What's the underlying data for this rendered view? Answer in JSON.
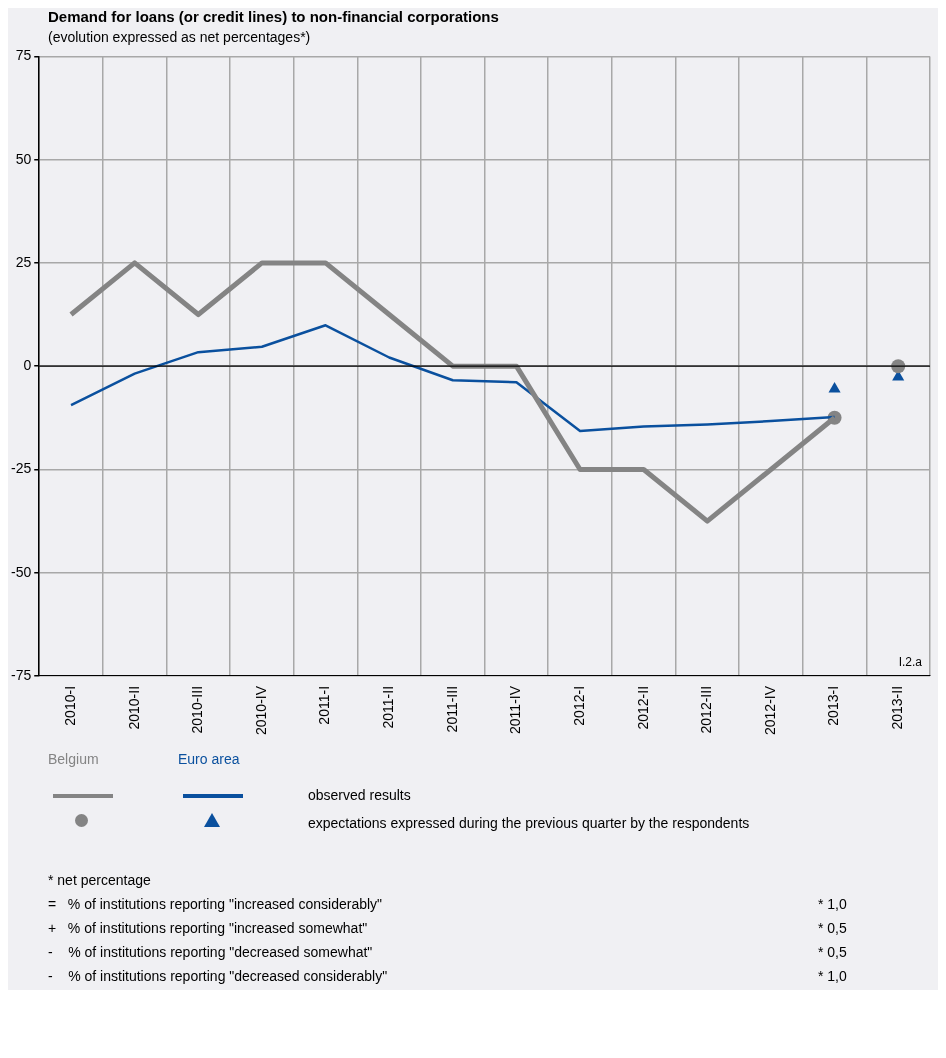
{
  "chart_data": {
    "type": "line",
    "title": "Demand for loans (or credit lines) to non-financial corporations",
    "subtitle": "(evolution expressed as net percentages*)",
    "categories": [
      "2010-I",
      "2010-II",
      "2010-III",
      "2010-IV",
      "2011-I",
      "2011-II",
      "2011-III",
      "2011-IV",
      "2012-I",
      "2012-II",
      "2012-III",
      "2012-IV",
      "2013-I",
      "2013-II"
    ],
    "series": [
      {
        "name": "Belgium",
        "type": "line",
        "color": "#848484",
        "values": [
          12.5,
          25,
          12.5,
          25,
          25,
          12.5,
          0,
          0,
          -25,
          -25,
          -37.5,
          -25,
          -12.5,
          null
        ]
      },
      {
        "name": "Euro area",
        "type": "line",
        "color": "#0a509e",
        "values": [
          -9.4,
          -1.8,
          3.4,
          4.7,
          9.9,
          2.1,
          -3.4,
          -3.9,
          -15.7,
          -14.6,
          -14.1,
          -13.3,
          -12.3,
          null
        ]
      },
      {
        "type": "scatter",
        "marker": "circle",
        "color": "#848484",
        "x": [
          "2013-I",
          "2013-II"
        ],
        "values": [
          -12.5,
          0
        ]
      },
      {
        "type": "scatter",
        "marker": "triangle",
        "color": "#0a509e",
        "x": [
          "2013-I",
          "2013-II"
        ],
        "values": [
          -5.5,
          -2.6
        ]
      }
    ],
    "ylim": [
      -75,
      75
    ],
    "yticks": [
      -75,
      -50,
      -25,
      0,
      25,
      50,
      75
    ],
    "grid": true,
    "legend": "bottom",
    "ref_lines": [
      {
        "axis": "y",
        "value": 0,
        "color": "#000000"
      }
    ],
    "annotations": [
      "I.2.a",
      "observed results",
      "expectations expressed during the previous quarter by the respondents",
      "* net percentage",
      "=   % of institutions reporting \"increased considerably\"",
      "* 1,0",
      "+   % of institutions reporting \"increased somewhat\"",
      "* 0,5",
      "-    % of institutions reporting \"decreased somewhat\"",
      "* 0,5",
      "-    % of institutions reporting \"decreased considerably\"",
      "* 1,0"
    ]
  }
}
